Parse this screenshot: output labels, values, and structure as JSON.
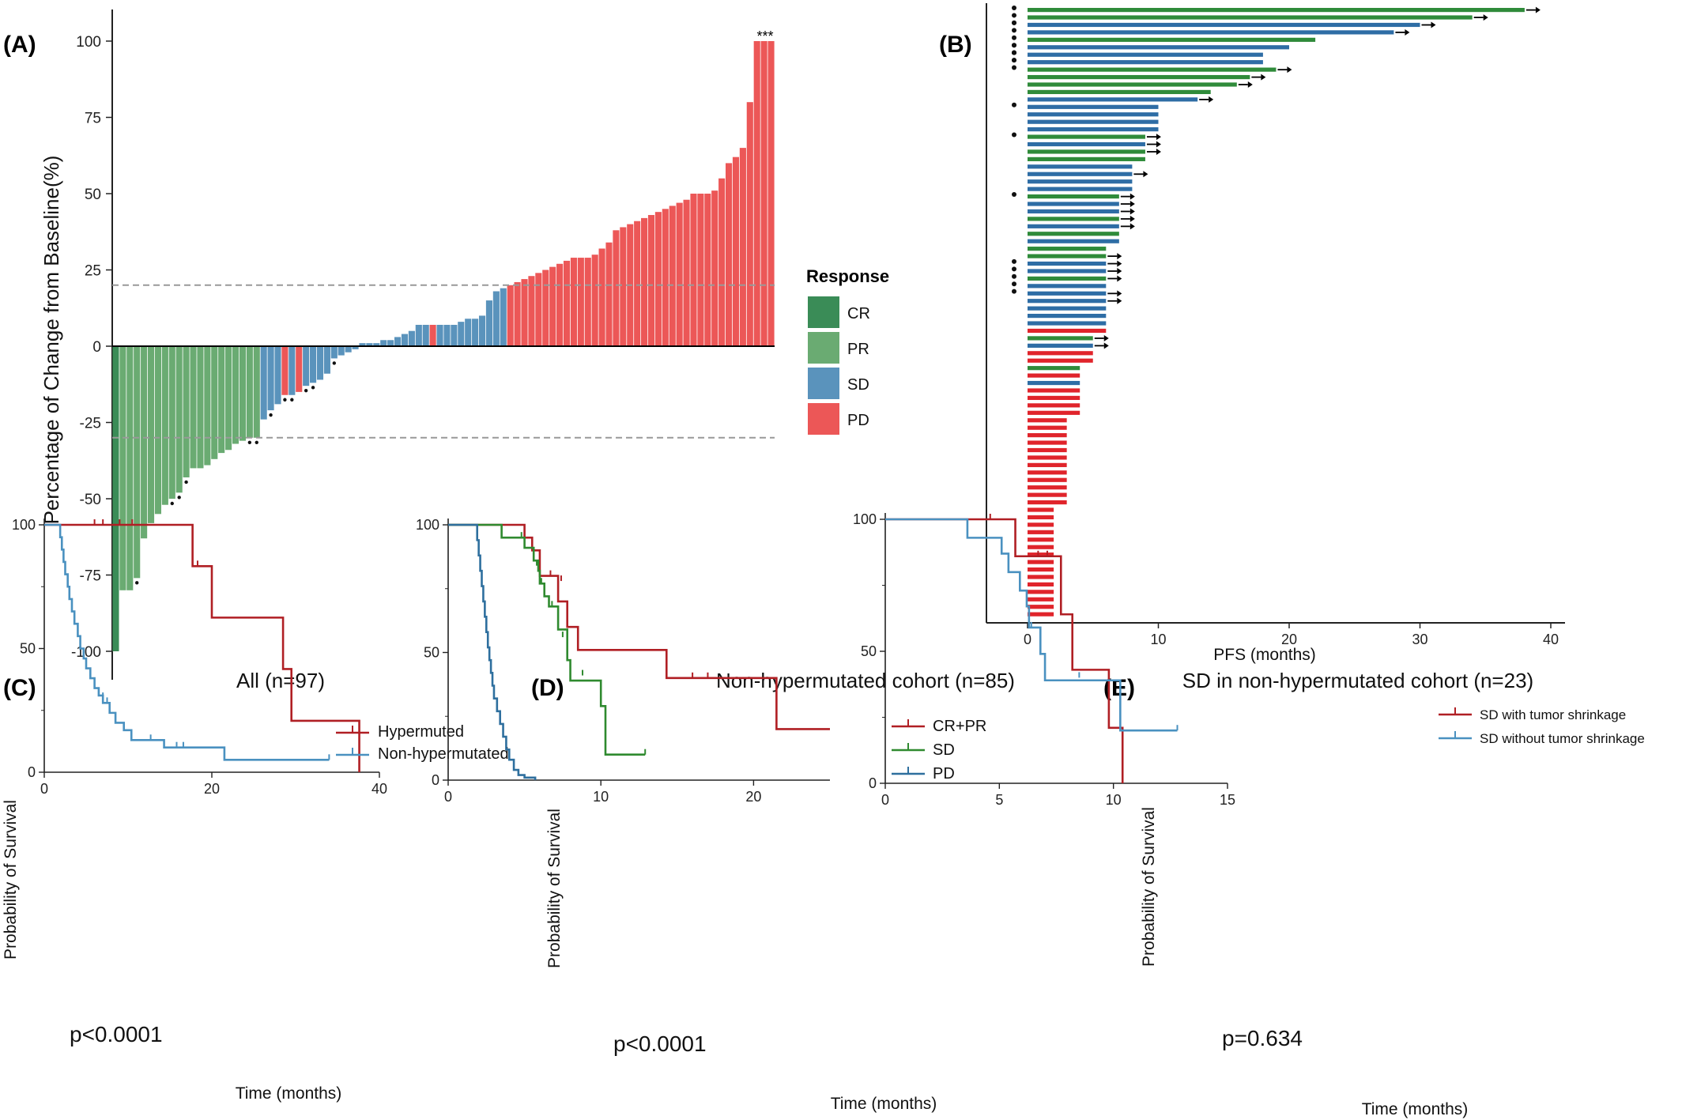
{
  "colors": {
    "CR": "#3a8c57",
    "PR": "#6aab72",
    "SD": "#5a93bc",
    "PD": "#ec5757",
    "red": "#b01f24",
    "green": "#2f8a2f",
    "blue": "#2e6f9e",
    "lightblue": "#4a91c0",
    "barGreen": "#2f8b3a",
    "barBlue": "#2e6da5",
    "barRed": "#e0242b"
  },
  "panels": [
    {
      "tag": "(A)"
    },
    {
      "tag": "(B)"
    },
    {
      "tag": "(C)"
    },
    {
      "tag": "(D)"
    },
    {
      "tag": "(E)"
    }
  ],
  "chart_data": [
    {
      "panel": "(A)",
      "type": "bar",
      "ylabel": "Percentage of Change from Baseline(%)",
      "ylim": [
        -105,
        110
      ],
      "yticks": [
        "100",
        "75",
        "50",
        "25",
        "0",
        "-25",
        "-50",
        "-75",
        "-100"
      ],
      "reference_lines": [
        20,
        -30
      ],
      "legend_title": "Response",
      "legend": [
        "CR",
        "PR",
        "SD",
        "PD"
      ],
      "star_marker": "***",
      "values": [
        -100,
        -80,
        -80,
        -76,
        -63,
        -58,
        -55,
        -52,
        -50,
        -48,
        -43,
        -40,
        -40,
        -39,
        -37,
        -35,
        -34,
        -32,
        -31,
        -30,
        -30,
        -24,
        -21,
        -19,
        -16,
        -16,
        -15,
        -13,
        -12,
        -11,
        -9,
        -4,
        -3,
        -2,
        -1,
        1,
        1,
        1,
        2,
        2,
        3,
        4,
        5,
        7,
        7,
        7,
        7,
        7,
        7,
        8,
        9,
        9,
        10,
        15,
        18,
        19,
        20,
        21,
        22,
        23,
        24,
        25,
        26,
        27,
        28,
        29,
        29,
        29,
        30,
        32,
        34,
        38,
        39,
        40,
        41,
        42,
        43,
        44,
        45,
        46,
        47,
        48,
        50,
        50,
        50,
        51,
        55,
        60,
        62,
        65,
        80,
        100,
        100,
        100
      ],
      "categories_response": [
        "CR",
        "PR",
        "PR",
        "PR",
        "PR",
        "PR",
        "PR",
        "PR",
        "PR",
        "PR",
        "PR",
        "PR",
        "PR",
        "PR",
        "PR",
        "PR",
        "PR",
        "PR",
        "PR",
        "PR",
        "PR",
        "SD",
        "SD",
        "SD",
        "PD",
        "SD",
        "PD",
        "SD",
        "SD",
        "SD",
        "SD",
        "SD",
        "SD",
        "SD",
        "SD",
        "SD",
        "SD",
        "SD",
        "SD",
        "SD",
        "SD",
        "SD",
        "SD",
        "SD",
        "SD",
        "PD",
        "SD",
        "SD",
        "SD",
        "SD",
        "SD",
        "SD",
        "SD",
        "SD",
        "SD",
        "SD",
        "PD",
        "PD",
        "PD",
        "PD",
        "PD",
        "PD",
        "PD",
        "PD",
        "PD",
        "PD",
        "PD",
        "PD",
        "PD",
        "PD",
        "PD",
        "PD",
        "PD",
        "PD",
        "PD",
        "PD",
        "PD",
        "PD",
        "PD",
        "PD",
        "PD",
        "PD",
        "PD",
        "PD",
        "PD",
        "PD",
        "PD",
        "PD",
        "PD",
        "PD",
        "PD",
        "PD",
        "PD",
        "PD"
      ],
      "dot_marked_indices": [
        3,
        8,
        9,
        10,
        19,
        20,
        22,
        24,
        25,
        27,
        28,
        31
      ]
    },
    {
      "panel": "(B)",
      "type": "bar",
      "orientation": "horizontal",
      "xlabel": "PFS (months)",
      "xlim": [
        -3,
        41
      ],
      "xticks": [
        "0",
        "10",
        "20",
        "30",
        "40"
      ],
      "values": [
        38,
        34,
        30,
        28,
        22,
        20,
        18,
        18,
        19,
        17,
        16,
        14,
        13,
        10,
        10,
        10,
        10,
        9,
        9,
        9,
        9,
        8,
        8,
        8,
        8,
        7,
        7,
        7,
        7,
        7,
        7,
        7,
        6,
        6,
        6,
        6,
        6,
        6,
        6,
        6,
        6,
        6,
        6,
        6,
        5,
        5,
        5,
        5,
        4,
        4,
        4,
        4,
        4,
        4,
        4,
        3,
        3,
        3,
        3,
        3,
        3,
        3,
        3,
        3,
        3,
        3,
        3,
        2,
        2,
        2,
        2,
        2,
        2,
        2,
        2,
        2,
        2,
        2,
        2,
        2,
        2,
        2
      ],
      "colors": [
        "green",
        "green",
        "blue",
        "blue",
        "green",
        "blue",
        "blue",
        "blue",
        "green",
        "green",
        "green",
        "green",
        "blue",
        "blue",
        "blue",
        "blue",
        "blue",
        "green",
        "blue",
        "green",
        "green",
        "blue",
        "blue",
        "blue",
        "blue",
        "green",
        "blue",
        "blue",
        "green",
        "blue",
        "green",
        "blue",
        "green",
        "green",
        "blue",
        "blue",
        "green",
        "blue",
        "blue",
        "blue",
        "blue",
        "blue",
        "blue",
        "red",
        "green",
        "blue",
        "red",
        "red",
        "green",
        "red",
        "blue",
        "red",
        "red",
        "red",
        "red",
        "red",
        "red",
        "red",
        "red",
        "red",
        "red",
        "red",
        "red",
        "red",
        "red",
        "red",
        "red",
        "red",
        "red",
        "red",
        "red",
        "red",
        "red",
        "red",
        "red",
        "red",
        "red",
        "red",
        "red",
        "red",
        "red",
        "red"
      ],
      "arrow_indices": [
        0,
        1,
        2,
        3,
        8,
        9,
        10,
        12,
        17,
        18,
        19,
        22,
        25,
        26,
        27,
        28,
        29,
        33,
        34,
        35,
        36,
        38,
        39,
        44,
        45
      ],
      "dots": [
        [
          0,
          1
        ],
        [
          1,
          2
        ],
        [
          2,
          2
        ],
        [
          4,
          3
        ],
        [
          5,
          3
        ],
        [
          6,
          3
        ],
        [
          13,
          1
        ],
        [
          17,
          1
        ],
        [
          25,
          1
        ],
        [
          34,
          1
        ],
        [
          35,
          2
        ],
        [
          37,
          2
        ]
      ]
    },
    {
      "panel": "(C)",
      "type": "line",
      "title": "All (n=97)",
      "xlabel": "Time (months)",
      "ylabel": "Probability of Survival",
      "xlim": [
        0,
        40
      ],
      "ylim": [
        0,
        100
      ],
      "xticks": [
        "0",
        "20",
        "40"
      ],
      "yticks": [
        "0",
        "50",
        "100"
      ],
      "p_value": "p<0.0001",
      "series": [
        {
          "name": "Hypermuted",
          "color": "red",
          "x": [
            0,
            17.7,
            17.7,
            20.0,
            20.0,
            28.5,
            28.5,
            29.5,
            29.5,
            37.6,
            37.6
          ],
          "y": [
            100,
            100,
            83.3,
            83.3,
            62.5,
            62.5,
            41.7,
            41.7,
            20.8,
            20.8,
            0
          ],
          "censor": [
            [
              6,
              100
            ],
            [
              7,
              100
            ],
            [
              9,
              100
            ],
            [
              10.5,
              100
            ],
            [
              18.3,
              83.3
            ]
          ]
        },
        {
          "name": "Non-hypermutated",
          "color": "lightblue",
          "x": [
            0,
            1.8,
            1.9,
            2.1,
            2.3,
            2.5,
            2.8,
            3.0,
            3.3,
            3.6,
            4.0,
            4.3,
            4.7,
            5.0,
            5.5,
            6.0,
            6.5,
            7.0,
            7.8,
            8.5,
            9.5,
            10.4,
            14.3,
            21.5,
            34
          ],
          "y": [
            100,
            100,
            95,
            90,
            85,
            80,
            75,
            70,
            65,
            60,
            55,
            50,
            46,
            42,
            38,
            34,
            31,
            28,
            24,
            20,
            17,
            13,
            10,
            5,
            5
          ],
          "censor": [
            [
              6.5,
              31
            ],
            [
              7.0,
              30
            ],
            [
              7.5,
              28
            ],
            [
              12.7,
              13
            ],
            [
              15.8,
              10
            ],
            [
              16.6,
              10
            ],
            [
              34,
              5
            ]
          ]
        }
      ]
    },
    {
      "panel": "(D)",
      "type": "line",
      "title": "Non-hypermutated cohort (n=85)",
      "xlabel": "Time (months)",
      "ylabel": "Probability of Survival",
      "xlim": [
        0,
        25
      ],
      "ylim": [
        0,
        100
      ],
      "xticks": [
        "0",
        "10",
        "20"
      ],
      "yticks": [
        "0",
        "50",
        "100"
      ],
      "p_value": "p<0.0001",
      "series": [
        {
          "name": "CR+PR",
          "color": "red",
          "x": [
            0,
            5.0,
            5.0,
            5.5,
            5.5,
            6.0,
            6.0,
            7.2,
            7.2,
            7.8,
            7.8,
            8.5,
            8.5,
            14.3,
            14.3,
            21.5,
            21.5,
            25
          ],
          "y": [
            100,
            100,
            95,
            95,
            90,
            90,
            80,
            80,
            70,
            70,
            60,
            60,
            51,
            51,
            40,
            40,
            20,
            20
          ],
          "censor": [
            [
              6.7,
              80
            ],
            [
              7.4,
              78
            ],
            [
              16.0,
              40
            ],
            [
              17.0,
              40
            ]
          ]
        },
        {
          "name": "SD",
          "color": "green",
          "x": [
            0,
            3.5,
            3.5,
            5.0,
            5.0,
            5.6,
            5.6,
            5.9,
            5.9,
            6.0,
            6.0,
            6.3,
            6.3,
            6.6,
            6.6,
            7.2,
            7.2,
            7.8,
            7.8,
            8.0,
            8.0,
            10.0,
            10.0,
            10.3,
            10.3,
            12.9
          ],
          "y": [
            100,
            100,
            95,
            95,
            91,
            91,
            86,
            86,
            82,
            82,
            77,
            77,
            72,
            72,
            68,
            68,
            59,
            59,
            47,
            47,
            39,
            39,
            29,
            29,
            10,
            10
          ],
          "censor": [
            [
              4.8,
              95
            ],
            [
              5.8,
              84
            ],
            [
              6.1,
              77
            ],
            [
              6.8,
              68
            ],
            [
              7.5,
              56
            ],
            [
              8.8,
              41
            ],
            [
              12.9,
              10
            ]
          ]
        },
        {
          "name": "PD",
          "color": "blue",
          "x": [
            0,
            1.8,
            1.9,
            2.0,
            2.1,
            2.2,
            2.3,
            2.4,
            2.5,
            2.6,
            2.7,
            2.8,
            2.9,
            3.0,
            3.2,
            3.4,
            3.6,
            3.8,
            4.0,
            4.3,
            4.6,
            5.0,
            5.7
          ],
          "y": [
            100,
            100,
            94,
            88,
            82,
            76,
            70,
            64,
            58,
            52,
            47,
            42,
            37,
            32,
            27,
            22,
            17,
            12,
            8,
            4,
            2,
            1,
            0
          ],
          "censor": []
        }
      ]
    },
    {
      "panel": "(E)",
      "type": "line",
      "title": "SD in non-hypermutated cohort (n=23)",
      "xlabel": "Time (months)",
      "ylabel": "Probability of Survival",
      "xlim": [
        0,
        15
      ],
      "ylim": [
        0,
        100
      ],
      "xticks": [
        "0",
        "5",
        "10",
        "15"
      ],
      "yticks": [
        "0",
        "50",
        "100"
      ],
      "p_value": "p=0.634",
      "series": [
        {
          "name": "SD with tumor shrinkage",
          "color": "red",
          "x": [
            0,
            5.7,
            5.7,
            7.7,
            7.7,
            8.2,
            8.2,
            9.8,
            9.8,
            10.4,
            10.4
          ],
          "y": [
            100,
            100,
            86,
            86,
            64,
            64,
            43,
            43,
            21,
            21,
            0
          ],
          "censor": [
            [
              4.6,
              100
            ],
            [
              6.7,
              86
            ],
            [
              7.1,
              86
            ]
          ]
        },
        {
          "name": "SD without tumor shrinkage",
          "color": "lightblue",
          "x": [
            0,
            3.6,
            3.6,
            5.1,
            5.1,
            5.4,
            5.4,
            5.9,
            5.9,
            6.2,
            6.2,
            6.3,
            6.3,
            6.8,
            6.8,
            7.0,
            7.0,
            10.3,
            10.3,
            12.8
          ],
          "y": [
            100,
            100,
            93,
            93,
            87,
            87,
            80,
            80,
            73,
            73,
            67,
            67,
            59,
            59,
            49,
            49,
            39,
            39,
            20,
            20
          ],
          "censor": [
            [
              6.4,
              59
            ],
            [
              7.0,
              40
            ],
            [
              8.5,
              40
            ],
            [
              12.8,
              20
            ]
          ]
        }
      ]
    }
  ]
}
